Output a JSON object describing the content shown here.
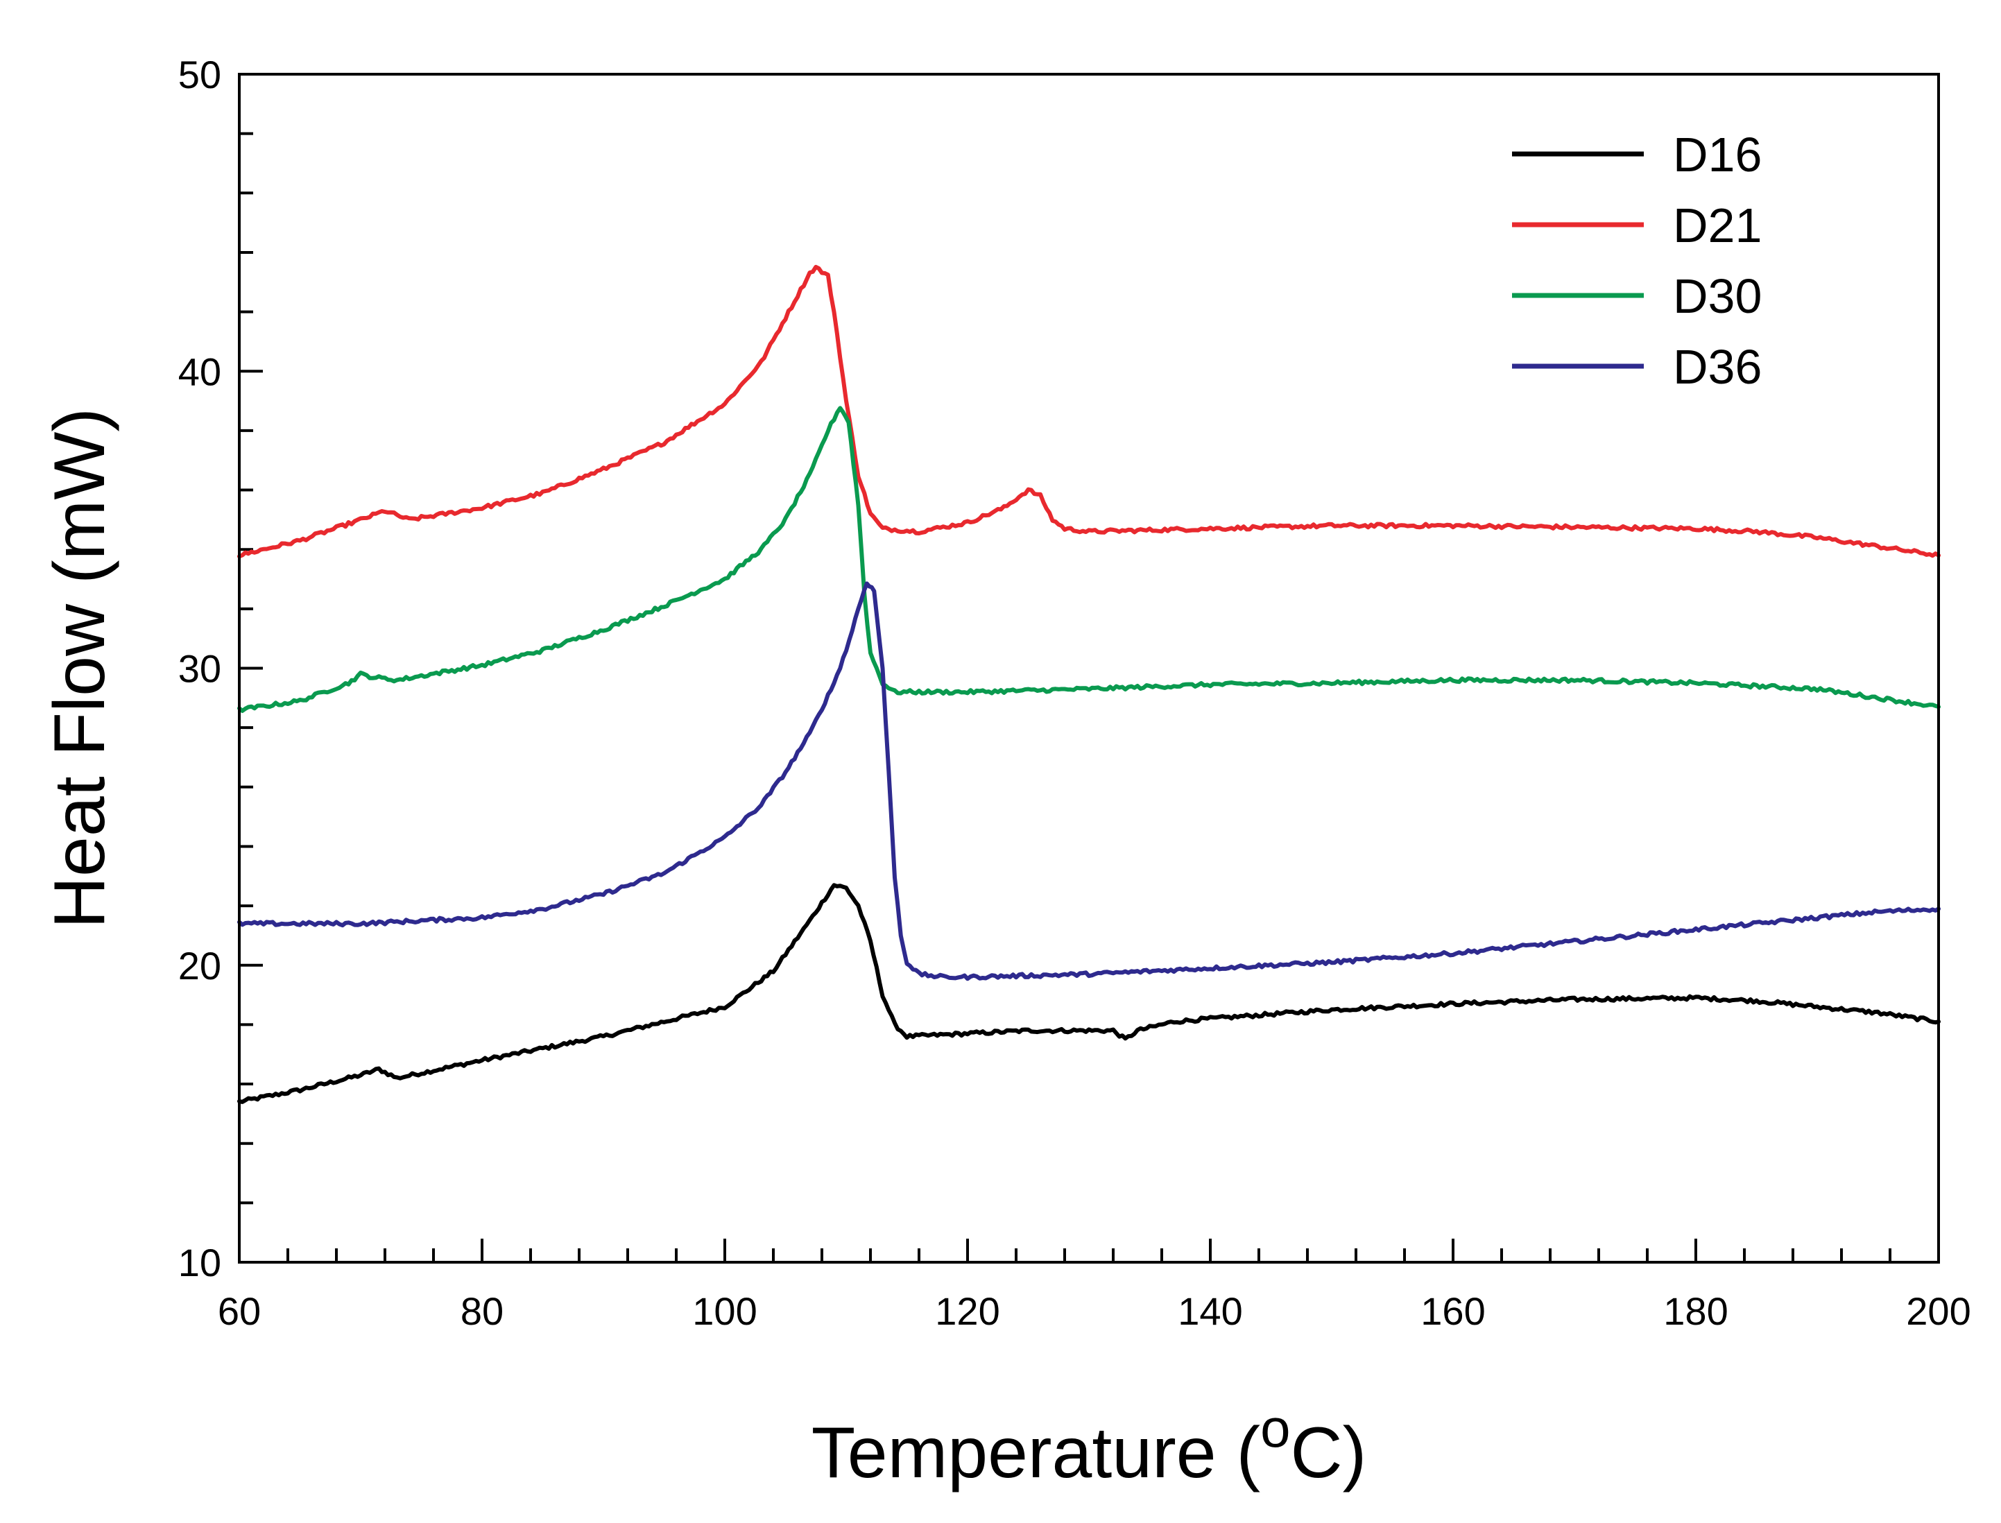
{
  "chart_data": {
    "type": "line",
    "title": "",
    "xlabel": "Temperature (",
    "xlabel_superscript": "o",
    "xlabel_suffix": "C)",
    "ylabel": "Heat Flow (mW)",
    "xlim": [
      60,
      200
    ],
    "ylim": [
      10,
      50
    ],
    "xticks": [
      "60",
      "80",
      "100",
      "120",
      "140",
      "160",
      "180",
      "200"
    ],
    "yticks": [
      "10",
      "20",
      "30",
      "40",
      "50"
    ],
    "x_minor_step": 4,
    "y_minor_step": 2,
    "grid": false,
    "legend_position": "top-right",
    "series": [
      {
        "name": "D16",
        "color": "#000000",
        "points": [
          [
            60,
            15.4
          ],
          [
            65,
            15.8
          ],
          [
            70,
            16.3
          ],
          [
            71.5,
            16.5
          ],
          [
            73,
            16.2
          ],
          [
            80,
            16.8
          ],
          [
            90,
            17.6
          ],
          [
            95,
            18.1
          ],
          [
            100,
            18.6
          ],
          [
            104,
            19.8
          ],
          [
            107,
            21.5
          ],
          [
            109,
            22.7
          ],
          [
            110,
            22.6
          ],
          [
            111,
            22.0
          ],
          [
            112,
            20.8
          ],
          [
            113,
            19.0
          ],
          [
            114,
            18.0
          ],
          [
            115,
            17.6
          ],
          [
            120,
            17.7
          ],
          [
            125,
            17.8
          ],
          [
            130,
            17.8
          ],
          [
            132,
            17.8
          ],
          [
            133,
            17.5
          ],
          [
            134,
            17.8
          ],
          [
            137,
            18.1
          ],
          [
            140,
            18.2
          ],
          [
            150,
            18.5
          ],
          [
            160,
            18.7
          ],
          [
            170,
            18.85
          ],
          [
            180,
            18.9
          ],
          [
            185,
            18.8
          ],
          [
            190,
            18.6
          ],
          [
            195,
            18.4
          ],
          [
            200,
            18.1
          ]
        ]
      },
      {
        "name": "D21",
        "color": "#e8292e",
        "points": [
          [
            60,
            33.8
          ],
          [
            65,
            34.3
          ],
          [
            70,
            35.0
          ],
          [
            72,
            35.3
          ],
          [
            74,
            35.0
          ],
          [
            80,
            35.4
          ],
          [
            85,
            35.9
          ],
          [
            90,
            36.7
          ],
          [
            95,
            37.6
          ],
          [
            100,
            38.9
          ],
          [
            103,
            40.3
          ],
          [
            105,
            41.8
          ],
          [
            107,
            43.3
          ],
          [
            107.5,
            43.5
          ],
          [
            108.5,
            43.2
          ],
          [
            109,
            42.0
          ],
          [
            110,
            39.0
          ],
          [
            111,
            36.5
          ],
          [
            112,
            35.2
          ],
          [
            113,
            34.7
          ],
          [
            116,
            34.6
          ],
          [
            120,
            34.9
          ],
          [
            123,
            35.4
          ],
          [
            125,
            36.0
          ],
          [
            126,
            35.8
          ],
          [
            127,
            35.0
          ],
          [
            128,
            34.7
          ],
          [
            130,
            34.6
          ],
          [
            140,
            34.7
          ],
          [
            150,
            34.8
          ],
          [
            160,
            34.8
          ],
          [
            170,
            34.75
          ],
          [
            180,
            34.7
          ],
          [
            185,
            34.6
          ],
          [
            190,
            34.4
          ],
          [
            195,
            34.1
          ],
          [
            200,
            33.8
          ]
        ]
      },
      {
        "name": "D30",
        "color": "#0a9a4f",
        "points": [
          [
            60,
            28.6
          ],
          [
            65,
            28.9
          ],
          [
            69,
            29.5
          ],
          [
            70,
            29.8
          ],
          [
            71,
            29.7
          ],
          [
            73,
            29.6
          ],
          [
            80,
            30.1
          ],
          [
            85,
            30.6
          ],
          [
            90,
            31.3
          ],
          [
            95,
            32.1
          ],
          [
            100,
            33.0
          ],
          [
            103,
            34.0
          ],
          [
            105,
            35.0
          ],
          [
            107,
            36.5
          ],
          [
            108.5,
            38.0
          ],
          [
            109.5,
            38.8
          ],
          [
            110.2,
            38.3
          ],
          [
            111,
            35.5
          ],
          [
            111.5,
            32.5
          ],
          [
            112,
            30.5
          ],
          [
            113,
            29.5
          ],
          [
            114,
            29.2
          ],
          [
            116,
            29.2
          ],
          [
            120,
            29.2
          ],
          [
            130,
            29.3
          ],
          [
            140,
            29.45
          ],
          [
            150,
            29.5
          ],
          [
            160,
            29.6
          ],
          [
            170,
            29.6
          ],
          [
            180,
            29.5
          ],
          [
            185,
            29.4
          ],
          [
            190,
            29.3
          ],
          [
            195,
            29.0
          ],
          [
            200,
            28.7
          ]
        ]
      },
      {
        "name": "D36",
        "color": "#2e2a8e",
        "points": [
          [
            60,
            21.4
          ],
          [
            65,
            21.4
          ],
          [
            70,
            21.4
          ],
          [
            75,
            21.5
          ],
          [
            80,
            21.6
          ],
          [
            85,
            21.9
          ],
          [
            90,
            22.4
          ],
          [
            95,
            23.1
          ],
          [
            100,
            24.3
          ],
          [
            103,
            25.4
          ],
          [
            105,
            26.5
          ],
          [
            107,
            27.8
          ],
          [
            109,
            29.5
          ],
          [
            110,
            30.6
          ],
          [
            111,
            32.0
          ],
          [
            111.7,
            32.9
          ],
          [
            112.3,
            32.6
          ],
          [
            113,
            30.0
          ],
          [
            113.5,
            26.5
          ],
          [
            114,
            23.0
          ],
          [
            114.5,
            21.0
          ],
          [
            115,
            20.1
          ],
          [
            116,
            19.7
          ],
          [
            118,
            19.6
          ],
          [
            120,
            19.6
          ],
          [
            125,
            19.65
          ],
          [
            130,
            19.7
          ],
          [
            135,
            19.8
          ],
          [
            140,
            19.9
          ],
          [
            150,
            20.1
          ],
          [
            160,
            20.4
          ],
          [
            170,
            20.8
          ],
          [
            180,
            21.2
          ],
          [
            190,
            21.6
          ],
          [
            195,
            21.8
          ],
          [
            200,
            21.9
          ]
        ]
      }
    ]
  }
}
